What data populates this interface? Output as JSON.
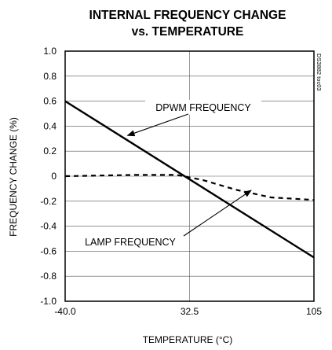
{
  "chart_data": {
    "type": "line",
    "title": "INTERNAL FREQUENCY CHANGE",
    "subtitle": "vs. TEMPERATURE",
    "xlabel": "TEMPERATURE (°C)",
    "ylabel": "FREQUENCY CHANGE (%)",
    "xlim": [
      -40,
      105
    ],
    "ylim": [
      -1.0,
      1.0
    ],
    "x_ticks": [
      "-40.0",
      "32.5",
      "105"
    ],
    "x_tick_values": [
      -40,
      32.5,
      105
    ],
    "y_ticks": [
      "1.0",
      "0.8",
      "0.6",
      "0.4",
      "0.2",
      "0",
      "-0.2",
      "-0.4",
      "-0.6",
      "-0.8",
      "-1.0"
    ],
    "y_tick_values": [
      1.0,
      0.8,
      0.6,
      0.4,
      0.2,
      0,
      -0.2,
      -0.4,
      -0.6,
      -0.8,
      -1.0
    ],
    "grid": true,
    "series": [
      {
        "name": "DPWM FREQUENCY",
        "style": "solid",
        "x": [
          -40,
          105
        ],
        "y": [
          0.6,
          -0.65
        ]
      },
      {
        "name": "LAMP FREQUENCY",
        "style": "dashed",
        "x": [
          -40,
          0,
          25,
          40,
          60,
          80,
          105
        ],
        "y": [
          0.0,
          0.01,
          0.01,
          -0.03,
          -0.11,
          -0.17,
          -0.19
        ]
      }
    ],
    "annotations": [
      {
        "text": "DPWM FREQUENCY",
        "series": 0
      },
      {
        "text": "LAMP FREQUENCY",
        "series": 1
      }
    ],
    "tag": "DS3882 toc03"
  }
}
